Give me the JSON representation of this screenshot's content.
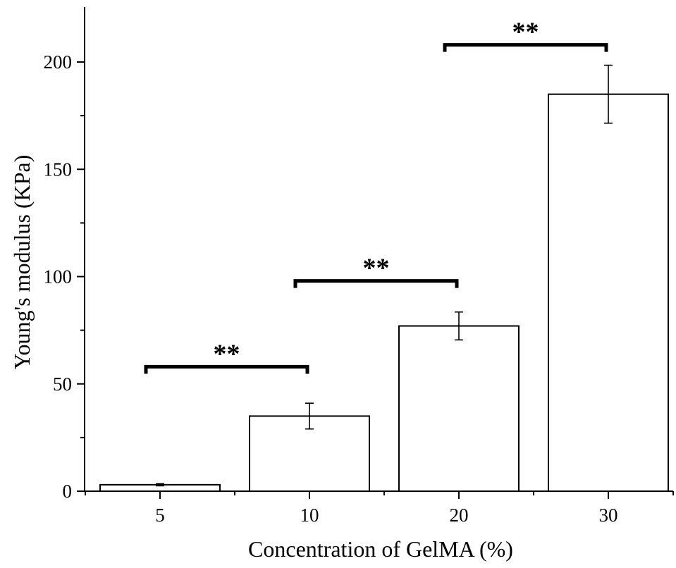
{
  "chart_data": {
    "type": "bar",
    "xlabel": "Concentration of GelMA (%)",
    "ylabel": "Young's modulus (KPa)",
    "categories": [
      "5",
      "10",
      "20",
      "30"
    ],
    "values": [
      3,
      35,
      77,
      185
    ],
    "errors": [
      0.5,
      6,
      6.5,
      13.5
    ],
    "ylim": [
      0,
      225
    ],
    "yticks": [
      0,
      50,
      100,
      150,
      200
    ],
    "grid": false,
    "bar_fill": "#ffffff",
    "bar_stroke": "#000000",
    "significance": [
      {
        "from": 0,
        "to": 1,
        "y": 58,
        "label": "**"
      },
      {
        "from": 1,
        "to": 2,
        "y": 98,
        "label": "**"
      },
      {
        "from": 2,
        "to": 3,
        "y": 208,
        "label": "**"
      }
    ]
  }
}
